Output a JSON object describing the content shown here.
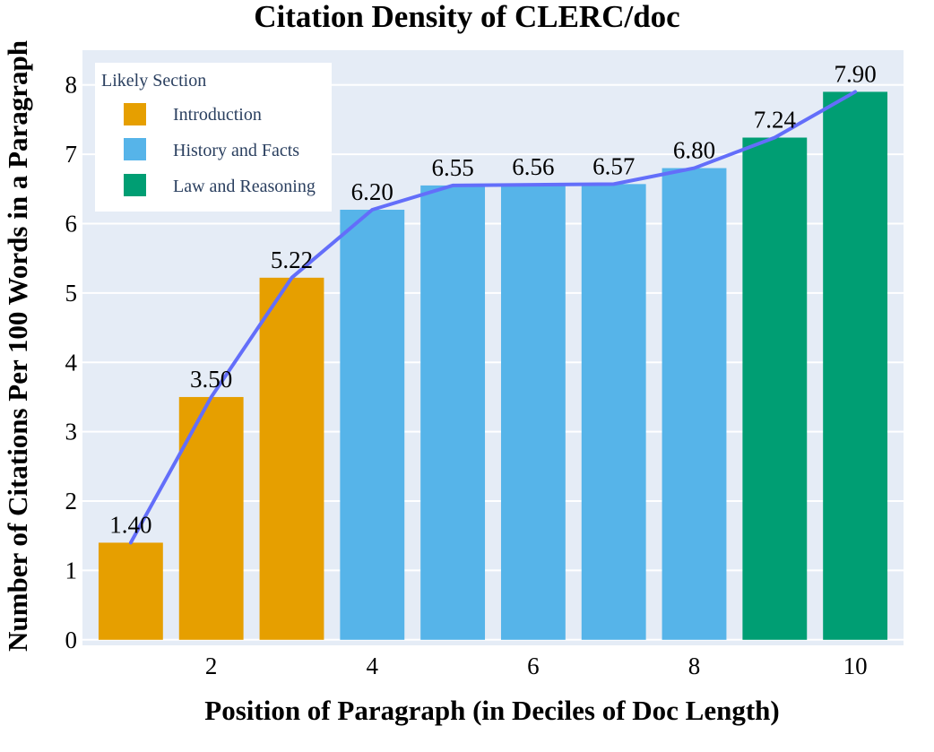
{
  "chart_data": {
    "type": "bar",
    "title": "Citation Density of CLERC/doc",
    "xlabel": "Position of Paragraph (in Deciles of Doc Length)",
    "ylabel": "Number of Citations Per 100 Words in a Paragraph",
    "x": [
      1,
      2,
      3,
      4,
      5,
      6,
      7,
      8,
      9,
      10
    ],
    "values": [
      1.4,
      3.5,
      5.22,
      6.2,
      6.55,
      6.56,
      6.57,
      6.8,
      7.24,
      7.9
    ],
    "value_labels": [
      "1.40",
      "3.50",
      "5.22",
      "6.20",
      "6.55",
      "6.56",
      "6.57",
      "6.80",
      "7.24",
      "7.90"
    ],
    "sections": [
      "Introduction",
      "Introduction",
      "Introduction",
      "History and Facts",
      "History and Facts",
      "History and Facts",
      "History and Facts",
      "History and Facts",
      "Law and Reasoning",
      "Law and Reasoning"
    ],
    "legend": {
      "title": "Likely Section",
      "placement": "top-left",
      "entries": [
        {
          "label": "Introduction",
          "color": "#E69F00"
        },
        {
          "label": "History and Facts",
          "color": "#56B4E9"
        },
        {
          "label": "Law and Reasoning",
          "color": "#009E73"
        }
      ]
    },
    "trend_line": {
      "color": "#636EFA",
      "values": [
        1.4,
        3.5,
        5.22,
        6.2,
        6.55,
        6.56,
        6.57,
        6.8,
        7.24,
        7.9
      ]
    },
    "xticks": [
      2,
      4,
      6,
      8,
      10
    ],
    "xtick_labels": [
      "2",
      "4",
      "6",
      "8",
      "10"
    ],
    "yticks": [
      0,
      1,
      2,
      3,
      4,
      5,
      6,
      7,
      8
    ],
    "ytick_labels": [
      "0",
      "1",
      "2",
      "3",
      "4",
      "5",
      "6",
      "7",
      "8"
    ],
    "xlim": [
      0.4,
      10.6
    ],
    "ylim": [
      -0.08,
      8.5
    ],
    "grid": true,
    "colors": {
      "plot_background": "#E5ECF6",
      "grid": "#FFFFFF"
    }
  }
}
